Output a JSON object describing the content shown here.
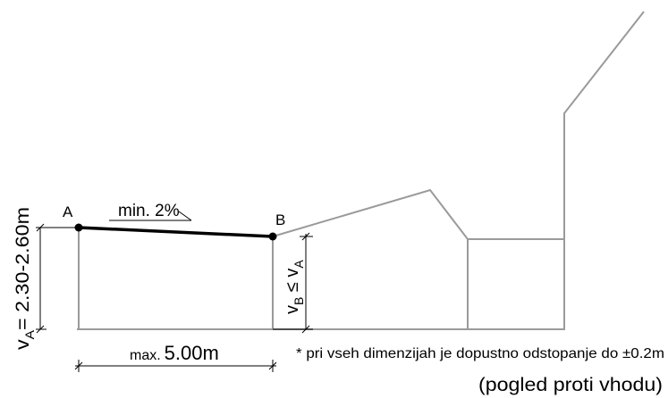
{
  "labels": {
    "point_a": "A",
    "point_b": "B",
    "slope": "min. 2%",
    "height_a": "v",
    "height_a_sub": "A",
    "height_a_value": "= 2.30-2.60m",
    "height_b_v": "v",
    "height_b_sub_b": "B",
    "height_b_rel": " ≤ v",
    "height_b_sub_a": "A",
    "width_prefix": "max.",
    "width_value": "5.00m",
    "note": "* pri vseh dimenzijah je dopustno odstopanje do ±0.2m",
    "view_caption": "(pogled proti vhodu)"
  },
  "colors": {
    "roof_line": "#000000",
    "outline": "#9a9a9a",
    "dimension": "#000000"
  }
}
